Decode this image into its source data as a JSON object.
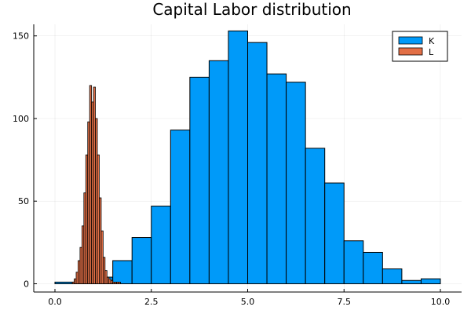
{
  "chart_data": {
    "type": "bar",
    "title": "Capital Labor distribution",
    "xlabel": "",
    "ylabel": "",
    "xlim": [
      -0.55,
      10.55
    ],
    "ylim": [
      -5,
      157
    ],
    "xticks": [
      "0.0",
      "2.5",
      "5.0",
      "7.5",
      "10.0"
    ],
    "xtick_values": [
      0,
      2.5,
      5,
      7.5,
      10
    ],
    "yticks": [
      "0",
      "50",
      "100",
      "150"
    ],
    "ytick_values": [
      0,
      50,
      100,
      150
    ],
    "grid": true,
    "legend_position": "top-right",
    "series": [
      {
        "name": "K",
        "color": "#009AF9",
        "bin_edges": [
          0,
          0.5,
          1,
          1.5,
          2,
          2.5,
          3,
          3.5,
          4,
          4.5,
          5,
          5.5,
          6,
          6.5,
          7,
          7.5,
          8,
          8.5,
          9,
          9.5,
          10
        ],
        "values": [
          1,
          2,
          4,
          14,
          28,
          47,
          93,
          125,
          135,
          153,
          146,
          127,
          122,
          82,
          61,
          26,
          19,
          9,
          2,
          3
        ]
      },
      {
        "name": "L",
        "color": "#E26F46",
        "bin_edges": [
          0.45,
          0.5,
          0.55,
          0.6,
          0.65,
          0.7,
          0.75,
          0.8,
          0.85,
          0.9,
          0.95,
          1.0,
          1.05,
          1.1,
          1.15,
          1.2,
          1.25,
          1.3,
          1.35,
          1.4,
          1.45,
          1.5,
          1.55,
          1.6,
          1.65,
          1.7
        ],
        "values": [
          1,
          3,
          7,
          14,
          22,
          35,
          55,
          78,
          98,
          120,
          110,
          119,
          100,
          78,
          52,
          32,
          16,
          8,
          4,
          3,
          2,
          1,
          1,
          1,
          1
        ]
      }
    ]
  }
}
